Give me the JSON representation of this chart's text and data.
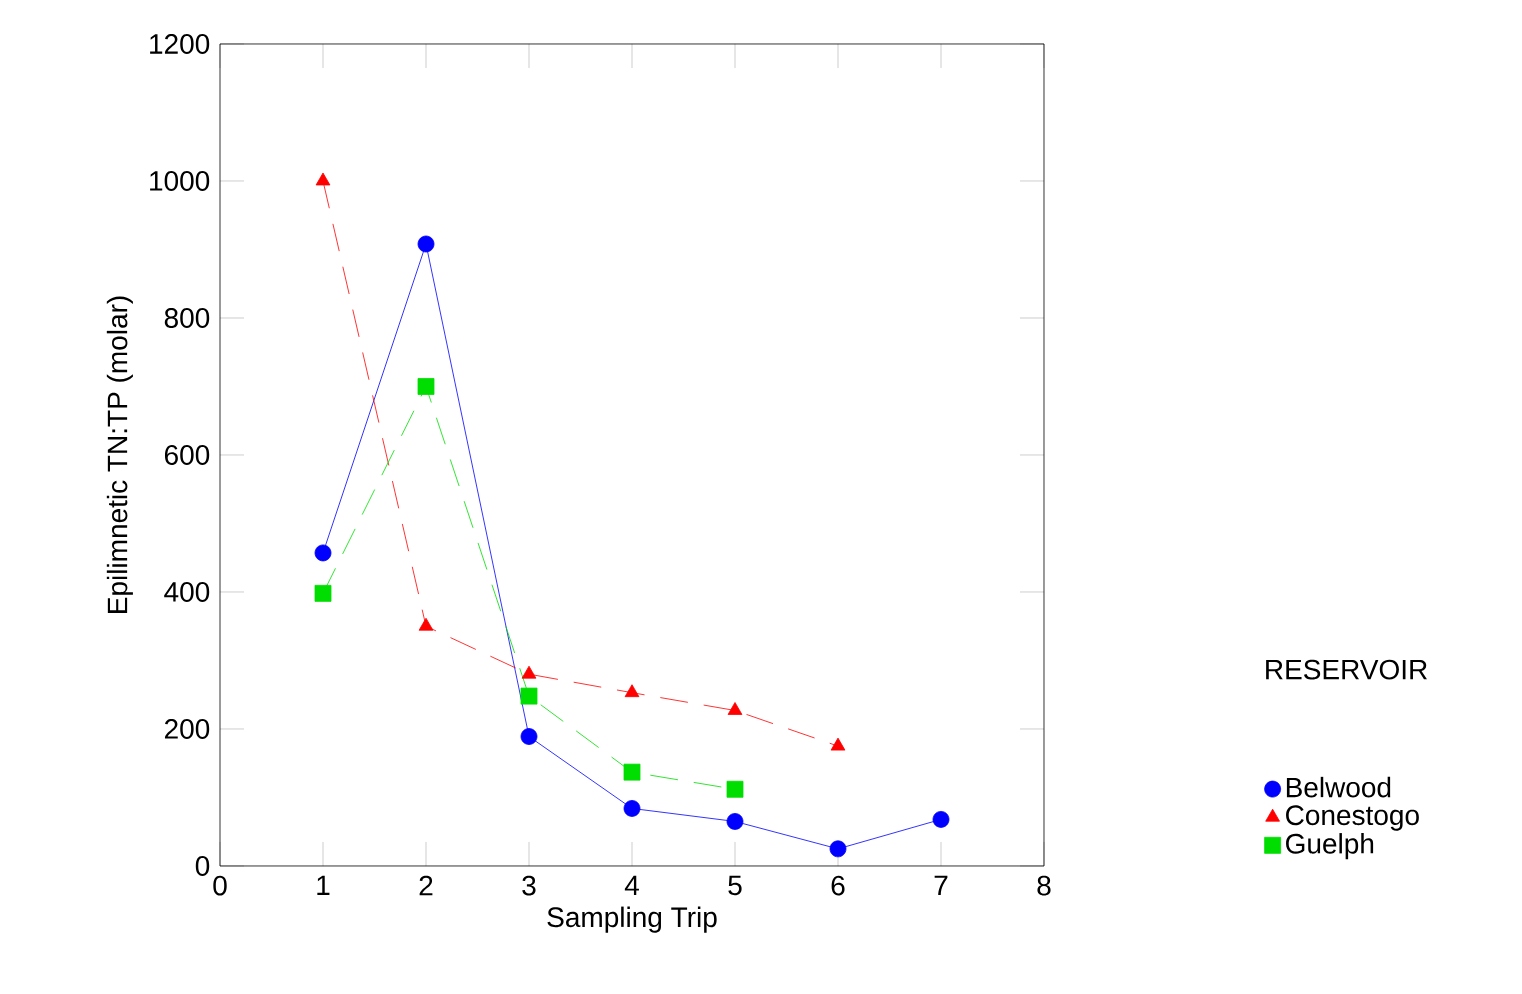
{
  "chart_data": {
    "type": "line",
    "xlabel": "Sampling Trip",
    "ylabel": "Epilimnetic TN:TP (molar)",
    "legend_title": "RESERVOIR",
    "legend": "right",
    "xlim": [
      0,
      8
    ],
    "xticks": [
      0,
      1,
      2,
      3,
      4,
      5,
      6,
      7,
      8
    ],
    "ylim": [
      0,
      1200
    ],
    "yticks": [
      0,
      200,
      400,
      600,
      800,
      1000,
      1200
    ],
    "grid": false,
    "series": [
      {
        "name": "Belwood",
        "color": "#0000ff",
        "marker": "circle",
        "line_style": "solid",
        "x": [
          1,
          2,
          3,
          4,
          5,
          6,
          7
        ],
        "values": [
          457,
          908,
          189,
          84,
          65,
          25,
          68
        ]
      },
      {
        "name": "Conestogo",
        "color": "#ff0000",
        "marker": "triangle",
        "line_style": "dashed",
        "x": [
          1,
          2,
          3,
          4,
          5,
          6
        ],
        "values": [
          1000,
          350,
          280,
          253,
          227,
          175
        ]
      },
      {
        "name": "Guelph",
        "color": "#00dd00",
        "marker": "square",
        "line_style": "dashed",
        "x": [
          1,
          2,
          3,
          4,
          5
        ],
        "values": [
          398,
          700,
          248,
          137,
          112
        ]
      }
    ]
  }
}
